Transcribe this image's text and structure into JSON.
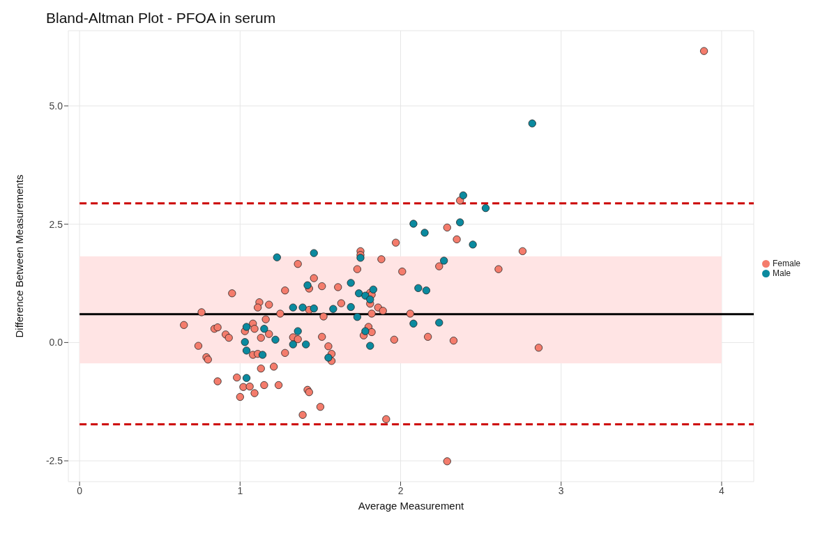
{
  "chart_data": {
    "type": "scatter",
    "title": "Bland-Altman Plot - PFOA in serum",
    "xlabel": "Average Measurement",
    "ylabel": "Difference Between Measurements",
    "xlim": [
      -0.07,
      4.2
    ],
    "xticks": [
      0,
      1,
      2,
      3,
      4
    ],
    "ylim": [
      -2.94,
      6.59
    ],
    "yticks": [
      {
        "value": -2.5,
        "label": "-2.5"
      },
      {
        "value": 0,
        "label": "0.0"
      },
      {
        "value": 2.5,
        "label": "2.5"
      },
      {
        "value": 5,
        "label": "5.0"
      }
    ],
    "grid": true,
    "legend": "right",
    "marker": "circle",
    "ref_lines": [
      {
        "axis": "y",
        "value": 0.6,
        "label": null,
        "color": "#000000",
        "line_style": "solid"
      },
      {
        "axis": "y",
        "value": 2.94,
        "label": null,
        "color": "#cc0000",
        "line_style": "dashed"
      },
      {
        "axis": "y",
        "value": -1.73,
        "label": null,
        "color": "#cc0000",
        "line_style": "dashed"
      }
    ],
    "bands": [
      {
        "axis": "y",
        "from": -0.44,
        "to": 1.82,
        "label": null,
        "color": "#ffe4e4"
      }
    ],
    "series": [
      {
        "name": "Female",
        "color": "#f47c6c",
        "x": [
          2.37,
          2.29,
          2.35,
          1.97,
          2.76,
          1.88,
          2.24,
          2.61,
          2.01,
          1.86,
          1.89,
          2.06,
          1.96,
          2.17,
          2.33,
          2.86,
          3.89,
          2.29,
          1.91,
          1.75,
          1.75,
          1.73,
          1.46,
          1.43,
          1.51,
          1.61,
          1.81,
          1.82,
          1.63,
          1.81,
          1.43,
          1.52,
          1.82,
          1.8,
          1.82,
          1.77,
          1.51,
          1.55,
          1.57,
          1.57,
          1.42,
          1.43,
          1.5,
          1.36,
          1.28,
          0.95,
          1.12,
          1.11,
          1.18,
          0.76,
          1.25,
          1.16,
          0.65,
          0.84,
          0.86,
          1.08,
          1.09,
          1.03,
          0.91,
          0.93,
          1.18,
          1.13,
          1.33,
          1.36,
          0.74,
          1.28,
          1.08,
          1.11,
          0.79,
          0.8,
          1.13,
          1.21,
          0.98,
          0.86,
          1.02,
          1.06,
          1.15,
          1.24,
          1.09,
          1.0,
          1.39
        ],
        "values": [
          3.0,
          2.43,
          2.18,
          2.11,
          1.93,
          1.76,
          1.61,
          1.55,
          1.5,
          0.74,
          0.67,
          0.61,
          0.06,
          0.12,
          0.04,
          -0.11,
          6.16,
          -2.51,
          -1.62,
          1.93,
          1.85,
          1.55,
          1.36,
          1.14,
          1.19,
          1.17,
          1.05,
          1.01,
          0.83,
          0.82,
          0.69,
          0.55,
          0.61,
          0.33,
          0.22,
          0.15,
          0.12,
          -0.08,
          -0.24,
          -0.39,
          -1.0,
          -1.05,
          -1.36,
          1.66,
          1.1,
          1.04,
          0.85,
          0.74,
          0.8,
          0.64,
          0.61,
          0.49,
          0.37,
          0.29,
          0.32,
          0.4,
          0.29,
          0.24,
          0.17,
          0.1,
          0.18,
          0.1,
          0.11,
          0.07,
          -0.07,
          -0.22,
          -0.26,
          -0.24,
          -0.31,
          -0.36,
          -0.55,
          -0.51,
          -0.74,
          -0.82,
          -0.94,
          -0.93,
          -0.9,
          -0.9,
          -1.07,
          -1.15,
          -1.53
        ]
      },
      {
        "name": "Male",
        "color": "#0b8a9f",
        "x": [
          2.39,
          2.53,
          2.08,
          2.37,
          2.15,
          2.45,
          2.27,
          2.11,
          2.16,
          2.08,
          2.24,
          2.82,
          1.46,
          1.75,
          1.42,
          1.69,
          1.74,
          1.83,
          1.78,
          1.81,
          1.46,
          1.58,
          1.69,
          1.73,
          1.78,
          1.81,
          1.41,
          1.55,
          1.23,
          1.33,
          1.39,
          1.04,
          1.15,
          1.36,
          1.03,
          1.22,
          1.33,
          1.04,
          1.14,
          1.04
        ],
        "values": [
          3.11,
          2.84,
          2.51,
          2.54,
          2.32,
          2.07,
          1.73,
          1.15,
          1.1,
          0.4,
          0.42,
          4.63,
          1.89,
          1.79,
          1.21,
          1.26,
          1.04,
          1.12,
          0.99,
          0.91,
          0.72,
          0.71,
          0.75,
          0.54,
          0.24,
          -0.07,
          -0.04,
          -0.32,
          1.8,
          0.74,
          0.74,
          0.33,
          0.29,
          0.24,
          0.01,
          0.06,
          -0.04,
          -0.17,
          -0.26,
          -0.75
        ]
      }
    ]
  }
}
